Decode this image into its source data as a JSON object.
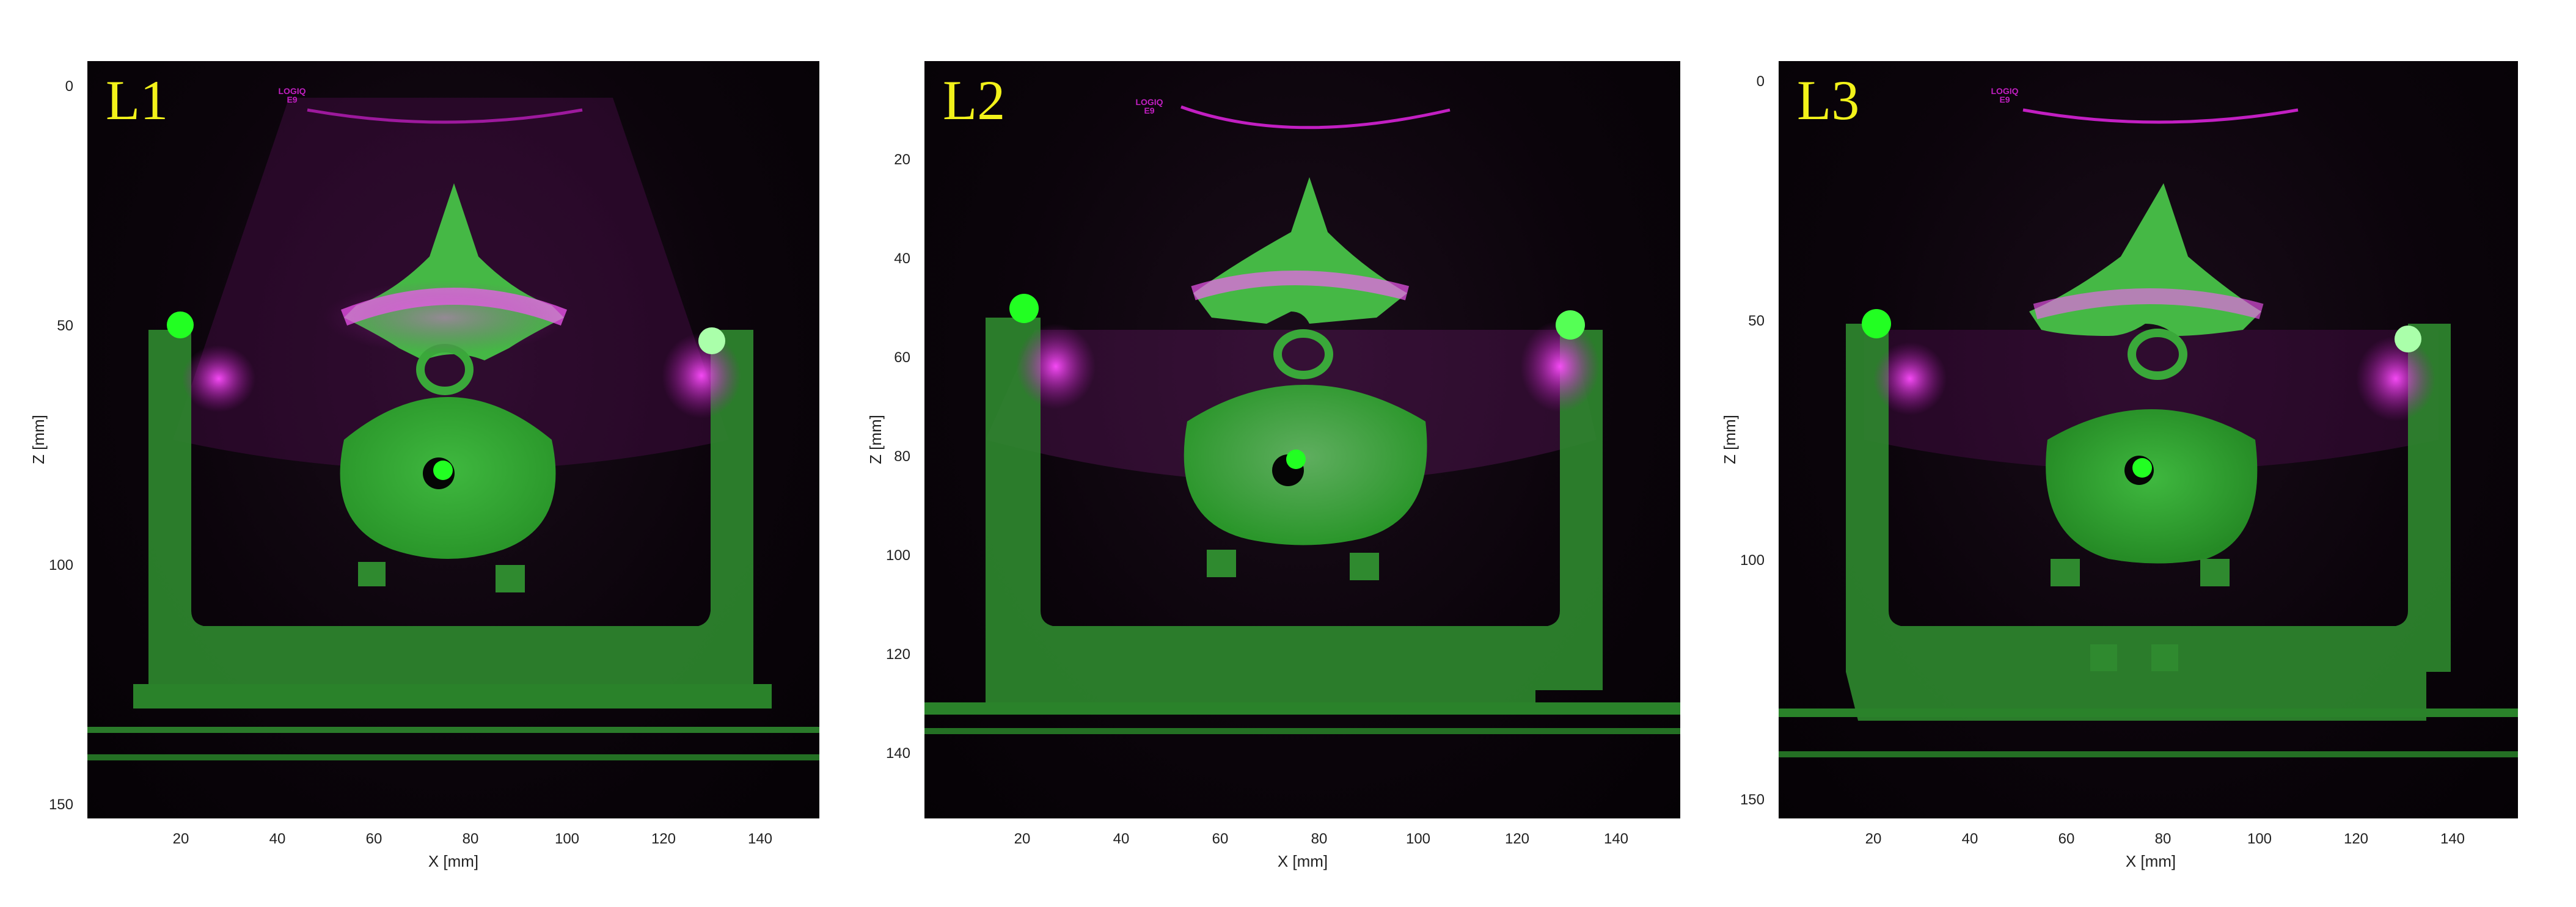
{
  "figure": {
    "x_axis_label": "X [mm]",
    "y_axis_label": "Z [mm]",
    "x_ticks": [
      "20",
      "40",
      "60",
      "80",
      "100",
      "120",
      "140"
    ],
    "colors": {
      "ct": "#2ec72e",
      "us": "#d01fd0",
      "label": "#f2f21a",
      "marker": "#22ff22"
    },
    "panels": [
      {
        "label": "L1",
        "y_ticks": [
          "0",
          "50",
          "100",
          "150"
        ],
        "logo_line1": "LOGIQ",
        "logo_line2": "E9"
      },
      {
        "label": "L2",
        "y_ticks": [
          "20",
          "40",
          "60",
          "80",
          "100",
          "120",
          "140"
        ],
        "logo_line1": "LOGIQ",
        "logo_line2": "E9"
      },
      {
        "label": "L3",
        "y_ticks": [
          "0",
          "50",
          "100",
          "150"
        ],
        "logo_line1": "LOGIQ",
        "logo_line2": "E9"
      }
    ]
  }
}
